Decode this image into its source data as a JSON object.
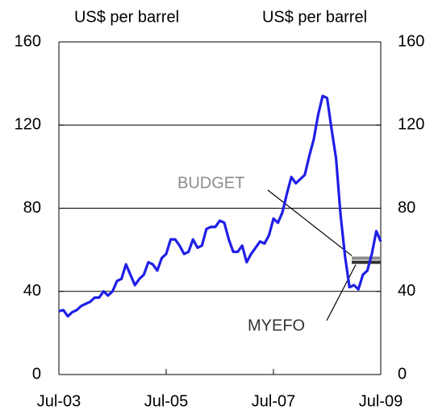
{
  "chart_data": {
    "type": "line",
    "y_label": "US$ per barrel",
    "y2_label": "US$ per barrel",
    "categories": [
      "Jul-03",
      null,
      null,
      null,
      null,
      null,
      null,
      null,
      null,
      null,
      null,
      null,
      null,
      null,
      null,
      null,
      null,
      null,
      null,
      null,
      null,
      null,
      null,
      null,
      "Jul-05",
      null,
      null,
      null,
      null,
      null,
      null,
      null,
      null,
      null,
      null,
      null,
      null,
      null,
      null,
      null,
      null,
      null,
      null,
      null,
      null,
      null,
      null,
      null,
      "Jul-07",
      null,
      null,
      null,
      null,
      null,
      null,
      null,
      null,
      null,
      null,
      null,
      null,
      null,
      null,
      null,
      null,
      null,
      null,
      null,
      null,
      null,
      null,
      null,
      "Jul-09"
    ],
    "xticks": [
      0,
      24,
      48,
      72
    ],
    "series": [
      {
        "color": "#1f1fe6",
        "values": [
          30.5,
          31,
          28,
          30,
          31,
          33,
          34,
          35,
          37,
          37,
          40,
          38,
          40,
          45,
          46,
          53,
          48,
          43,
          46,
          48,
          54,
          53,
          50,
          56,
          58,
          65,
          65,
          62,
          58,
          59,
          65,
          61,
          62,
          70,
          71,
          71,
          74,
          73,
          65,
          59,
          59,
          62,
          54,
          58,
          61,
          64,
          63,
          67,
          75,
          73,
          78,
          87,
          95,
          92,
          94,
          96,
          105,
          113,
          125,
          134,
          133,
          118,
          104,
          77,
          57,
          42,
          43,
          41,
          48,
          50,
          58,
          69,
          64
        ]
      }
    ],
    "annotations": [
      {
        "label": "BUDGET",
        "value": 56,
        "color": "#8c8c8c"
      },
      {
        "label": "MYEFO",
        "value": 54,
        "color": "#333333"
      }
    ],
    "ylim": [
      0,
      160
    ],
    "yticks": [
      0,
      40,
      80,
      120,
      160
    ],
    "y2lim": [
      0,
      160
    ],
    "y2ticks": [
      0,
      40,
      80,
      120,
      160
    ],
    "grid": true
  }
}
